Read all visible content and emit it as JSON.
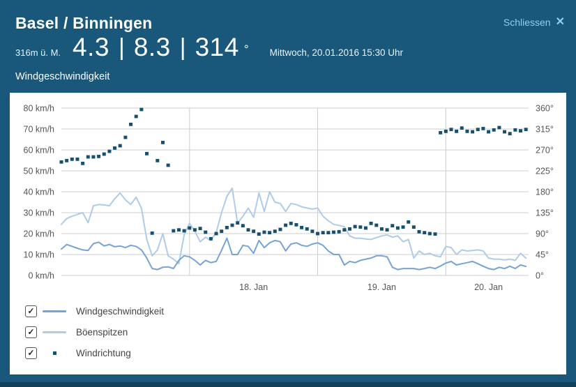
{
  "header": {
    "title": "Basel / Binningen",
    "close_label": "Schliessen",
    "close_icon": "✕",
    "altitude": "316m ü. M.",
    "timestamp": "Mittwoch, 20.01.2016 15:30 Uhr"
  },
  "current": {
    "wind_speed": "4.3",
    "gust": "8.3",
    "direction": "314",
    "separator": "|",
    "degree_symbol": "°"
  },
  "section_title": "Windgeschwindigkeit",
  "colors": {
    "background": "#19587a",
    "panel": "#ffffff",
    "link": "#8ed1ee",
    "grid": "#cccccc",
    "axis_text": "#555555"
  },
  "chart_data": {
    "type": "line+scatter",
    "title": "Windgeschwindigkeit",
    "x_description": "hourly values from 17.01.2016 00:00 to 20.01.2016 15:30",
    "hours_total": 88,
    "grid_color": "#cccccc",
    "left_axis": {
      "min": 0,
      "max": 80,
      "step": 10,
      "unit": "km/h",
      "labels": [
        "80 km/h",
        "70 km/h",
        "60 km/h",
        "50 km/h",
        "40 km/h",
        "30 km/h",
        "20 km/h",
        "10 km/h",
        "0 km/h"
      ]
    },
    "right_axis": {
      "min": 0,
      "max": 360,
      "step": 45,
      "unit": "°",
      "labels": [
        "360°",
        "315°",
        "270°",
        "225°",
        "180°",
        "135°",
        "90°",
        "45°",
        "0°"
      ]
    },
    "day_boundaries_hours": [
      24,
      48,
      72
    ],
    "x_ticks": [
      {
        "label": "18. Jan",
        "center_hour": 36
      },
      {
        "label": "19. Jan",
        "center_hour": 60
      },
      {
        "label": "20. Jan",
        "center_hour": 80
      }
    ],
    "series": [
      {
        "name": "Windgeschwindigkeit",
        "type": "line",
        "axis": "left",
        "color": "#74a3d6",
        "z": 2,
        "values": [
          12.6,
          14.8,
          13.9,
          13,
          12.2,
          11.9,
          15.2,
          15.9,
          14.1,
          14.8,
          13.7,
          14.1,
          13.3,
          14.4,
          13.9,
          12.2,
          8.3,
          3.3,
          2.8,
          3.9,
          4.1,
          3.3,
          7.2,
          9.4,
          8.9,
          7.2,
          5,
          7.2,
          6.1,
          6.7,
          12,
          17.8,
          10,
          10,
          14.4,
          13.9,
          10.6,
          16.7,
          13.3,
          15.6,
          16.7,
          16.1,
          11.7,
          15,
          15.6,
          14.4,
          13.9,
          15,
          15.6,
          14.4,
          11.7,
          10,
          10,
          5,
          6.7,
          6.1,
          7.2,
          7.8,
          8.3,
          9.4,
          9.4,
          8.9,
          3.9,
          2.8,
          3.3,
          3.3,
          3.3,
          2.8,
          3.3,
          3.9,
          3.3,
          4.5,
          5.9,
          6.7,
          5,
          5.6,
          6.1,
          6.7,
          5.6,
          4.4,
          3.3,
          2.8,
          3.9,
          3.3,
          4.4,
          3.3,
          5,
          4.3
        ]
      },
      {
        "name": "Böenspitzen",
        "type": "line",
        "axis": "left",
        "color": "#aecbe9",
        "z": 1,
        "values": [
          24.4,
          27.2,
          28.3,
          29.2,
          30,
          25.2,
          33.3,
          33.9,
          33.7,
          33.3,
          36.7,
          39.4,
          36.1,
          33.9,
          37.4,
          32.2,
          17.2,
          9.4,
          12.2,
          20,
          9.4,
          7.8,
          5.6,
          19.4,
          25,
          21.1,
          16.1,
          18.3,
          16.7,
          20.6,
          30,
          37.8,
          41.7,
          25,
          28.3,
          32.2,
          27.8,
          39.4,
          30.6,
          40,
          35,
          34.4,
          30.6,
          34.4,
          33.9,
          32.8,
          32.2,
          31.7,
          32.2,
          28.3,
          26.1,
          24.4,
          23.9,
          23.3,
          18.9,
          17.8,
          17.8,
          17.4,
          17.2,
          18.1,
          18.9,
          19.4,
          18.3,
          18.9,
          16.1,
          17.2,
          8.3,
          11.7,
          10,
          10.6,
          9.4,
          8.9,
          13.9,
          13.3,
          10,
          12.2,
          11.7,
          11.9,
          12.2,
          11.7,
          8.3,
          7.8,
          7.8,
          7.4,
          7.8,
          7.2,
          10.6,
          8.3
        ]
      },
      {
        "name": "Windrichtung",
        "type": "scatter",
        "axis": "right",
        "color": "#17506f",
        "z": 3,
        "values": [
          244,
          247,
          250,
          250,
          241,
          255,
          255,
          256,
          261,
          267,
          274,
          279,
          297,
          325,
          342,
          357,
          262,
          91,
          247,
          286,
          237,
          96,
          98,
          96,
          102,
          98,
          101,
          93,
          79,
          90,
          95,
          103,
          108,
          113,
          107,
          98,
          95,
          89,
          93,
          92,
          95,
          99,
          108,
          112,
          109,
          103,
          100,
          95,
          90,
          92,
          92,
          93,
          94,
          98,
          100,
          105,
          104,
          102,
          112,
          108,
          100,
          98,
          107,
          102,
          104,
          115,
          104,
          94,
          92,
          90,
          89,
          307,
          310,
          314,
          310,
          317,
          310,
          309,
          314,
          316,
          309,
          313,
          318,
          309,
          305,
          313,
          311,
          314
        ]
      }
    ]
  },
  "legend": {
    "check_glyph": "✓",
    "items": [
      {
        "label": "Windgeschwindigkeit",
        "checked": true,
        "sample": "line"
      },
      {
        "label": "Böenspitzen",
        "checked": true,
        "sample": "line"
      },
      {
        "label": "Windrichtung",
        "checked": true,
        "sample": "dot"
      }
    ]
  }
}
